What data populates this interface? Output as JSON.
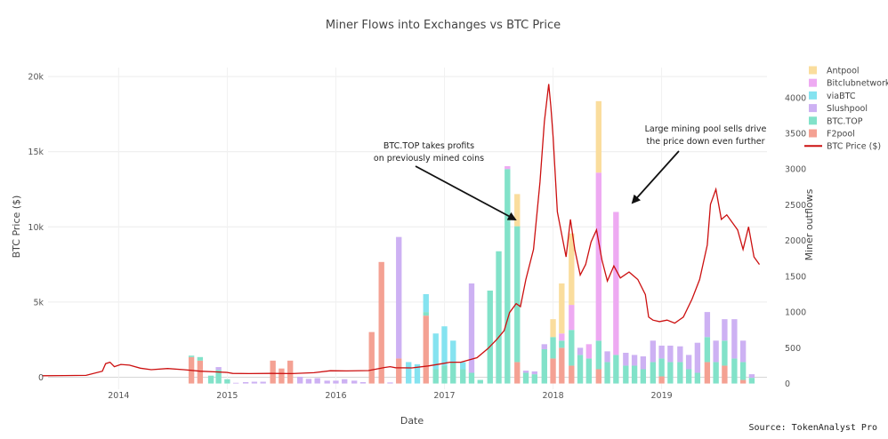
{
  "chart_data": {
    "type": "bar",
    "title": "Miner Flows into Exchanges vs BTC Price",
    "xlabel": "Date",
    "ylabel_left": "BTC Price ($)",
    "ylabel_right": "Miner outflows",
    "source": "Source: TokenAnalyst Pro",
    "x_range": [
      2013.35,
      2019.97
    ],
    "y_left_range": [
      -800,
      20600
    ],
    "y_right_range": [
      -80,
      4420
    ],
    "y_left_ticks": [
      {
        "v": 0,
        "t": "0"
      },
      {
        "v": 5000,
        "t": "5k"
      },
      {
        "v": 10000,
        "t": "10k"
      },
      {
        "v": 15000,
        "t": "15k"
      },
      {
        "v": 20000,
        "t": "20k"
      }
    ],
    "y_right_ticks": [
      0,
      500,
      1000,
      1500,
      2000,
      2500,
      3000,
      3500,
      4000
    ],
    "x_ticks": [
      {
        "v": 2014,
        "t": "2014"
      },
      {
        "v": 2015,
        "t": "2015"
      },
      {
        "v": 2016,
        "t": "2016"
      },
      {
        "v": 2017,
        "t": "2017"
      },
      {
        "v": 2018,
        "t": "2018"
      },
      {
        "v": 2019,
        "t": "2019"
      }
    ],
    "grid": true,
    "legend_position": "right",
    "colors": {
      "Antpool": "#fadd9d",
      "Bitclubnetwork": "#eeaaf2",
      "viaBTC": "#85e3f0",
      "Slushpool": "#cdb1f3",
      "BTC.TOP": "#82e2c9",
      "F2pool": "#f4a193",
      "BTC Price ($)": "#cc1010"
    },
    "legend": [
      "Antpool",
      "Bitclubnetwork",
      "viaBTC",
      "Slushpool",
      "BTC.TOP",
      "F2pool",
      "BTC Price ($)"
    ],
    "stack_order": [
      "F2pool",
      "BTC.TOP",
      "Slushpool",
      "viaBTC",
      "Bitclubnetwork",
      "Antpool"
    ],
    "bar_width_years": 0.052,
    "bars": [
      {
        "x": 2014.67,
        "F2pool": 370,
        "BTC.TOP": 20
      },
      {
        "x": 2014.75,
        "F2pool": 320,
        "BTC.TOP": 50
      },
      {
        "x": 2014.85,
        "BTC.TOP": 110
      },
      {
        "x": 2014.92,
        "BTC.TOP": 190,
        "Slushpool": 40
      },
      {
        "x": 2015.0,
        "BTC.TOP": 60
      },
      {
        "x": 2015.08,
        "Slushpool": 10
      },
      {
        "x": 2015.17,
        "Slushpool": 20
      },
      {
        "x": 2015.25,
        "Slushpool": 25
      },
      {
        "x": 2015.33,
        "Slushpool": 25
      },
      {
        "x": 2015.42,
        "F2pool": 320
      },
      {
        "x": 2015.5,
        "F2pool": 210
      },
      {
        "x": 2015.58,
        "F2pool": 320
      },
      {
        "x": 2015.67,
        "Slushpool": 95
      },
      {
        "x": 2015.75,
        "Slushpool": 65
      },
      {
        "x": 2015.83,
        "Slushpool": 75
      },
      {
        "x": 2015.92,
        "Slushpool": 40
      },
      {
        "x": 2016.0,
        "Slushpool": 40
      },
      {
        "x": 2016.08,
        "Slushpool": 60
      },
      {
        "x": 2016.17,
        "Slushpool": 40
      },
      {
        "x": 2016.25,
        "Slushpool": 20
      },
      {
        "x": 2016.33,
        "F2pool": 720
      },
      {
        "x": 2016.42,
        "F2pool": 1700
      },
      {
        "x": 2016.5,
        "Slushpool": 15
      },
      {
        "x": 2016.58,
        "F2pool": 350,
        "Slushpool": 1700
      },
      {
        "x": 2016.67,
        "viaBTC": 300
      },
      {
        "x": 2016.75,
        "viaBTC": 270
      },
      {
        "x": 2016.83,
        "F2pool": 950,
        "BTC.TOP": 50,
        "viaBTC": 250
      },
      {
        "x": 2016.92,
        "BTC.TOP": 200,
        "viaBTC": 500
      },
      {
        "x": 2017.0,
        "BTC.TOP": 250,
        "viaBTC": 550
      },
      {
        "x": 2017.08,
        "BTC.TOP": 300,
        "viaBTC": 300
      },
      {
        "x": 2017.17,
        "BTC.TOP": 200,
        "viaBTC": 100
      },
      {
        "x": 2017.25,
        "BTC.TOP": 150,
        "Slushpool": 1250
      },
      {
        "x": 2017.33,
        "BTC.TOP": 50
      },
      {
        "x": 2017.42,
        "BTC.TOP": 1300
      },
      {
        "x": 2017.5,
        "BTC.TOP": 1850
      },
      {
        "x": 2017.58,
        "BTC.TOP": 3000,
        "Bitclubnetwork": 40
      },
      {
        "x": 2017.67,
        "F2pool": 300,
        "BTC.TOP": 1900,
        "Antpool": 450
      },
      {
        "x": 2017.75,
        "BTC.TOP": 150,
        "Slushpool": 30
      },
      {
        "x": 2017.83,
        "BTC.TOP": 130,
        "Slushpool": 40
      },
      {
        "x": 2017.92,
        "BTC.TOP": 480,
        "Slushpool": 70
      },
      {
        "x": 2018.0,
        "F2pool": 350,
        "BTC.TOP": 300,
        "Antpool": 250
      },
      {
        "x": 2018.08,
        "F2pool": 500,
        "BTC.TOP": 100,
        "Bitclubnetwork": 100,
        "Antpool": 700
      },
      {
        "x": 2018.17,
        "F2pool": 250,
        "BTC.TOP": 500,
        "Bitclubnetwork": 350,
        "Antpool": 1000
      },
      {
        "x": 2018.25,
        "BTC.TOP": 400,
        "Slushpool": 100
      },
      {
        "x": 2018.33,
        "BTC.TOP": 350,
        "Bitclubnetwork": 200
      },
      {
        "x": 2018.42,
        "F2pool": 200,
        "BTC.TOP": 400,
        "Bitclubnetwork": 2350,
        "Antpool": 1000
      },
      {
        "x": 2018.5,
        "BTC.TOP": 300,
        "Slushpool": 150
      },
      {
        "x": 2018.58,
        "BTC.TOP": 400,
        "Bitclubnetwork": 2000
      },
      {
        "x": 2018.67,
        "BTC.TOP": 250,
        "Slushpool": 180
      },
      {
        "x": 2018.75,
        "BTC.TOP": 250,
        "Slushpool": 150
      },
      {
        "x": 2018.83,
        "BTC.TOP": 200,
        "Slushpool": 180
      },
      {
        "x": 2018.92,
        "BTC.TOP": 300,
        "Slushpool": 300
      },
      {
        "x": 2019.0,
        "F2pool": 100,
        "BTC.TOP": 250,
        "Slushpool": 180
      },
      {
        "x": 2019.08,
        "BTC.TOP": 300,
        "Slushpool": 230
      },
      {
        "x": 2019.17,
        "BTC.TOP": 300,
        "Slushpool": 220
      },
      {
        "x": 2019.25,
        "BTC.TOP": 200,
        "Slushpool": 200
      },
      {
        "x": 2019.33,
        "BTC.TOP": 150,
        "Slushpool": 420
      },
      {
        "x": 2019.42,
        "F2pool": 300,
        "BTC.TOP": 350,
        "Slushpool": 350
      },
      {
        "x": 2019.5,
        "BTC.TOP": 300,
        "Slushpool": 300
      },
      {
        "x": 2019.58,
        "F2pool": 250,
        "BTC.TOP": 350,
        "Slushpool": 300
      },
      {
        "x": 2019.67,
        "BTC.TOP": 350,
        "Slushpool": 550
      },
      {
        "x": 2019.75,
        "F2pool": 50,
        "BTC.TOP": 250,
        "Slushpool": 300
      },
      {
        "x": 2019.83,
        "BTC.TOP": 80,
        "Slushpool": 50
      }
    ],
    "price_series": {
      "name": "BTC Price ($)",
      "x": [
        2013.3,
        2013.5,
        2013.7,
        2013.85,
        2013.88,
        2013.92,
        2013.96,
        2014.02,
        2014.1,
        2014.2,
        2014.3,
        2014.45,
        2014.6,
        2014.75,
        2014.9,
        2015.0,
        2015.05,
        2015.2,
        2015.4,
        2015.6,
        2015.8,
        2015.95,
        2016.1,
        2016.3,
        2016.45,
        2016.5,
        2016.55,
        2016.7,
        2016.85,
        2016.98,
        2017.05,
        2017.15,
        2017.3,
        2017.4,
        2017.48,
        2017.55,
        2017.6,
        2017.66,
        2017.7,
        2017.75,
        2017.82,
        2017.88,
        2017.92,
        2017.96,
        2017.98,
        2018.0,
        2018.04,
        2018.08,
        2018.12,
        2018.16,
        2018.2,
        2018.25,
        2018.3,
        2018.35,
        2018.4,
        2018.45,
        2018.5,
        2018.56,
        2018.62,
        2018.7,
        2018.78,
        2018.85,
        2018.88,
        2018.92,
        2018.98,
        2019.05,
        2019.12,
        2019.2,
        2019.28,
        2019.35,
        2019.42,
        2019.45,
        2019.5,
        2019.55,
        2019.6,
        2019.65,
        2019.7,
        2019.75,
        2019.8,
        2019.85,
        2019.9
      ],
      "y": [
        100,
        110,
        120,
        400,
        900,
        1000,
        700,
        850,
        800,
        600,
        500,
        580,
        500,
        400,
        350,
        320,
        250,
        240,
        250,
        240,
        300,
        430,
        420,
        440,
        650,
        700,
        630,
        620,
        750,
        900,
        1000,
        1000,
        1300,
        1900,
        2500,
        3100,
        4300,
        4900,
        4700,
        6500,
        8500,
        13000,
        17000,
        19500,
        18000,
        16000,
        11000,
        9500,
        8000,
        10500,
        8500,
        6800,
        7500,
        9000,
        9800,
        7800,
        6400,
        7400,
        6600,
        7000,
        6500,
        5500,
        4000,
        3800,
        3700,
        3800,
        3600,
        4000,
        5200,
        6500,
        8800,
        11500,
        12500,
        10500,
        10800,
        10300,
        9800,
        8500,
        10000,
        8000,
        7500
      ]
    },
    "annotations": [
      {
        "text": [
          "BTC.TOP takes profits",
          "on previously mined coins"
        ]
      },
      {
        "text": [
          "Large mining pool sells drive",
          "the price down even further"
        ]
      }
    ]
  }
}
